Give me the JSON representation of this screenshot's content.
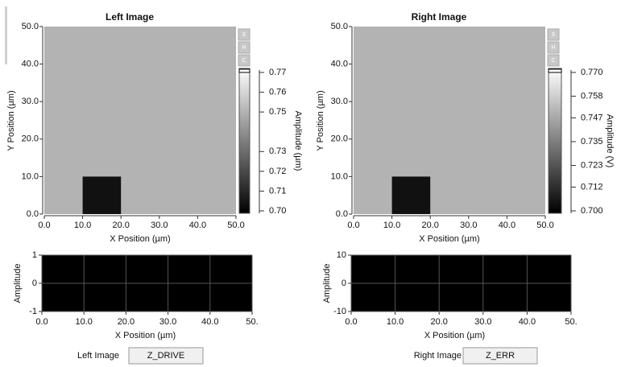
{
  "panels": [
    {
      "title": "Left Image",
      "image": {
        "xlabel": "X Position (µm)",
        "ylabel": "Y Position (µm)",
        "xlim": [
          0,
          50
        ],
        "ylim": [
          0,
          50
        ],
        "xticks": [
          {
            "value": 0,
            "label": "0.0"
          },
          {
            "value": 10,
            "label": "10.0"
          },
          {
            "value": 20,
            "label": "20.0"
          },
          {
            "value": 30,
            "label": "30.0"
          },
          {
            "value": 40,
            "label": "40.0"
          },
          {
            "value": 50,
            "label": "50.0"
          }
        ],
        "yticks": [
          {
            "value": 0,
            "label": "0.0"
          },
          {
            "value": 10,
            "label": "10.0"
          },
          {
            "value": 20,
            "label": "20.0"
          },
          {
            "value": 30,
            "label": "30.0"
          },
          {
            "value": 40,
            "label": "40.0"
          },
          {
            "value": 50,
            "label": "50.0"
          }
        ],
        "background": "#b3b3b3",
        "region": {
          "x": [
            10,
            20
          ],
          "y": [
            0,
            10
          ],
          "color": "#111111"
        }
      },
      "buttons": [
        "S",
        "H",
        "C"
      ],
      "colorbar": {
        "label": "Amplitude (µm)",
        "lim": [
          0.7,
          0.77
        ],
        "ticks": [
          0.77,
          0.76,
          0.75,
          0.73,
          0.72,
          0.71,
          {
            "value": 0.7,
            "label": "0.70"
          }
        ]
      },
      "profile": {
        "xlabel": "X Position (µm)",
        "ylabel": "Amplitude",
        "xlim": [
          0,
          50
        ],
        "ylim": [
          -1,
          1
        ],
        "xticks": [
          {
            "value": 0,
            "label": "0.0"
          },
          {
            "value": 10,
            "label": "10.0"
          },
          {
            "value": 20,
            "label": "20.0"
          },
          {
            "value": 30,
            "label": "30.0"
          },
          {
            "value": 40,
            "label": "40.0"
          },
          {
            "value": 50,
            "label": "50."
          }
        ],
        "yticks": [
          1,
          0,
          -1
        ]
      },
      "channel": {
        "label": "Left Image",
        "value": "Z_DRIVE"
      }
    },
    {
      "title": "Right Image",
      "image": {
        "xlabel": "X Position (µm)",
        "ylabel": "Y Position (µm)",
        "xlim": [
          0,
          50
        ],
        "ylim": [
          0,
          50
        ],
        "xticks": [
          {
            "value": 0,
            "label": "0.0"
          },
          {
            "value": 10,
            "label": "10.0"
          },
          {
            "value": 20,
            "label": "20.0"
          },
          {
            "value": 30,
            "label": "30.0"
          },
          {
            "value": 40,
            "label": "40.0"
          },
          {
            "value": 50,
            "label": "50.0"
          }
        ],
        "yticks": [
          {
            "value": 0,
            "label": "0.0"
          },
          {
            "value": 10,
            "label": "10.0"
          },
          {
            "value": 20,
            "label": "20.0"
          },
          {
            "value": 30,
            "label": "30.0"
          },
          {
            "value": 40,
            "label": "40.0"
          },
          {
            "value": 50,
            "label": "50.0"
          }
        ],
        "background": "#b3b3b3",
        "region": {
          "x": [
            10,
            20
          ],
          "y": [
            0,
            10
          ],
          "color": "#111111"
        }
      },
      "buttons": [
        "S",
        "H",
        "C"
      ],
      "colorbar": {
        "label": "Amplitude (V)",
        "lim": [
          0.7,
          0.77
        ],
        "ticks": [
          {
            "value": 0.77,
            "label": "0.770"
          },
          0.758,
          0.747,
          0.735,
          0.723,
          0.712,
          {
            "value": 0.7,
            "label": "0.700"
          }
        ]
      },
      "profile": {
        "xlabel": "X Position (µm)",
        "ylabel": "Amplitude",
        "xlim": [
          0,
          50
        ],
        "ylim": [
          -10,
          10
        ],
        "xticks": [
          {
            "value": 0,
            "label": "0.0"
          },
          {
            "value": 10,
            "label": "10.0"
          },
          {
            "value": 20,
            "label": "20.0"
          },
          {
            "value": 30,
            "label": "30.0"
          },
          {
            "value": 40,
            "label": "40.0"
          },
          {
            "value": 50,
            "label": "50."
          }
        ],
        "yticks": [
          10,
          0,
          -10
        ]
      },
      "channel": {
        "label": "Right Image",
        "value": "Z_ERR"
      }
    }
  ]
}
